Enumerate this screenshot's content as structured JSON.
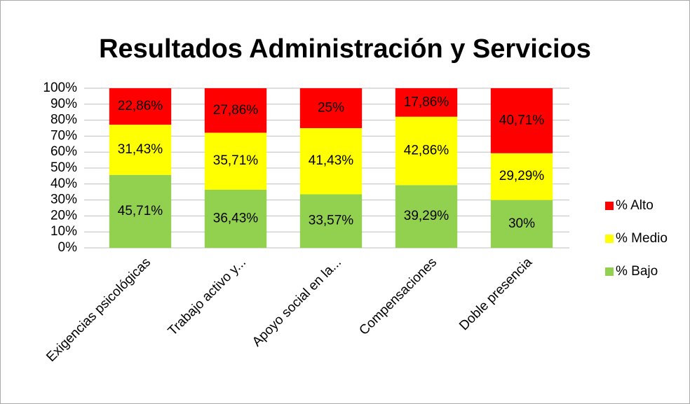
{
  "chart_data": {
    "type": "stacked_bar",
    "title": "Resultados Administración y Servicios",
    "categories": [
      "Exigencias psicológicas",
      "Trabajo activo y...",
      "Apoyo social en la...",
      "Compensaciones",
      "Doble presencia"
    ],
    "series": [
      {
        "name": "% Bajo",
        "color": "#92d050",
        "values": [
          45.71,
          36.43,
          33.57,
          39.29,
          30
        ],
        "value_labels": [
          "45,71%",
          "36,43%",
          "33,57%",
          "39,29%",
          "30%"
        ]
      },
      {
        "name": "% Medio",
        "color": "#ffff00",
        "values": [
          31.43,
          35.71,
          41.43,
          42.86,
          29.29
        ],
        "value_labels": [
          "31,43%",
          "35,71%",
          "41,43%",
          "42,86%",
          "29,29%"
        ]
      },
      {
        "name": "% Alto",
        "color": "#ff0000",
        "values": [
          22.86,
          27.86,
          25,
          17.86,
          40.71
        ],
        "value_labels": [
          "22,86%",
          "27,86%",
          "25%",
          "17,86%",
          "40,71%"
        ]
      }
    ],
    "ylim": [
      0,
      100
    ],
    "yticks": [
      {
        "value": 0,
        "label": "0%"
      },
      {
        "value": 10,
        "label": "10%"
      },
      {
        "value": 20,
        "label": "20%"
      },
      {
        "value": 30,
        "label": "30%"
      },
      {
        "value": 40,
        "label": "40%"
      },
      {
        "value": 50,
        "label": "50%"
      },
      {
        "value": 60,
        "label": "60%"
      },
      {
        "value": 70,
        "label": "70%"
      },
      {
        "value": 80,
        "label": "80%"
      },
      {
        "value": 90,
        "label": "90%"
      },
      {
        "value": 100,
        "label": "100%"
      }
    ],
    "grid": true,
    "legend": "right"
  }
}
